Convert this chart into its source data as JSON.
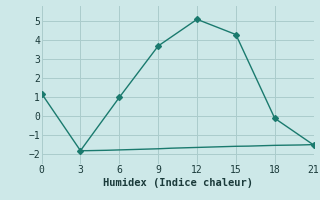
{
  "main_x": [
    0,
    3,
    6,
    9,
    12,
    15,
    18,
    21
  ],
  "main_y": [
    1.2,
    -1.8,
    1.0,
    3.7,
    5.1,
    4.3,
    -0.1,
    -1.5
  ],
  "flat_x": [
    3,
    3.5,
    5,
    6,
    7,
    8,
    9,
    10,
    11,
    12,
    13,
    14,
    15,
    16,
    17,
    18,
    19,
    20,
    21
  ],
  "flat_y": [
    -1.8,
    -1.8,
    -1.78,
    -1.76,
    -1.74,
    -1.72,
    -1.7,
    -1.67,
    -1.65,
    -1.63,
    -1.61,
    -1.59,
    -1.57,
    -1.56,
    -1.54,
    -1.52,
    -1.51,
    -1.5,
    -1.48
  ],
  "line_color": "#1a7a6e",
  "bg_color": "#cde8e8",
  "grid_color": "#aacccc",
  "xlabel": "Humidex (Indice chaleur)",
  "xlim": [
    0,
    21
  ],
  "ylim": [
    -2.5,
    5.8
  ],
  "xticks": [
    0,
    3,
    6,
    9,
    12,
    15,
    18,
    21
  ],
  "yticks": [
    -2,
    -1,
    0,
    1,
    2,
    3,
    4,
    5
  ],
  "marker": "D",
  "markersize": 3,
  "linewidth": 1.0,
  "tick_fontsize": 7,
  "xlabel_fontsize": 7.5
}
